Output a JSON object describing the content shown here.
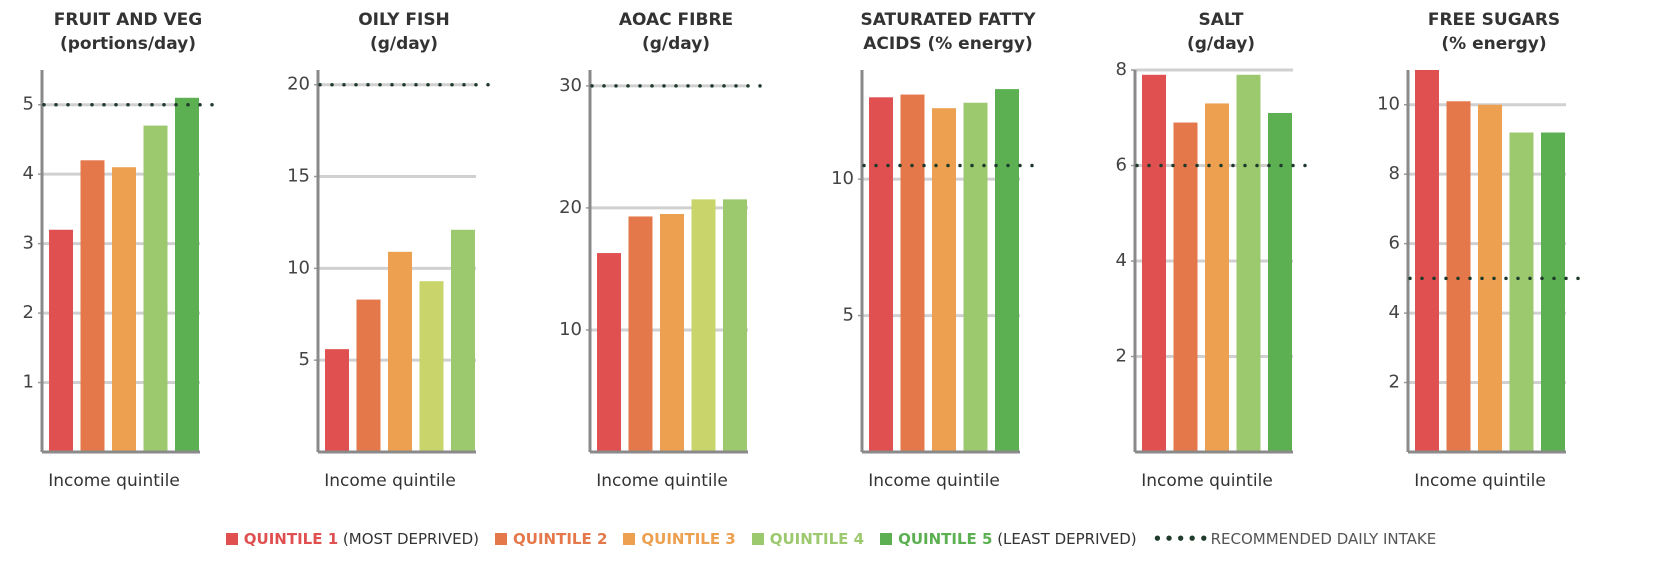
{
  "chart_data": [
    {
      "type": "bar",
      "title": "FRUIT AND VEG",
      "subtitle": "(portions/day)",
      "x_label": "Income quintile",
      "values": [
        3.2,
        4.2,
        4.1,
        4.7,
        5.1
      ],
      "colors": [
        "#e05050",
        "#e5784a",
        "#eca050",
        "#9cc86e",
        "#5cb052"
      ],
      "reference": 5,
      "ylim": [
        0,
        5.5
      ],
      "yticks": [
        1,
        2,
        3,
        4,
        5
      ],
      "grid": true
    },
    {
      "type": "bar",
      "title": "OILY FISH",
      "subtitle": "(g/day)",
      "x_label": "Income quintile",
      "values": [
        5.6,
        8.3,
        10.9,
        9.3,
        12.1
      ],
      "colors": [
        "#e05050",
        "#e5784a",
        "#eca050",
        "#c9d46a",
        "#9cc86e"
      ],
      "reference": 20,
      "ylim": [
        0,
        20.8
      ],
      "yticks": [
        5,
        10,
        15,
        20
      ],
      "grid": true
    },
    {
      "type": "bar",
      "title": "AOAC FIBRE",
      "subtitle": "(g/day)",
      "x_label": "Income quintile",
      "values": [
        16.3,
        19.3,
        19.5,
        20.7,
        20.7
      ],
      "colors": [
        "#e05050",
        "#e5784a",
        "#eca050",
        "#c9d46a",
        "#9cc86e"
      ],
      "reference": 30,
      "ylim": [
        0,
        31.3
      ],
      "yticks": [
        10,
        20,
        30
      ],
      "grid": true
    },
    {
      "type": "bar",
      "title": "SATURATED FATTY",
      "subtitle": "ACIDS (% energy)",
      "x_label": "Income quintile",
      "values": [
        13.0,
        13.1,
        12.6,
        12.8,
        13.3
      ],
      "colors": [
        "#e05050",
        "#e5784a",
        "#eca050",
        "#9cc86e",
        "#5cb052"
      ],
      "reference": 10.5,
      "ylim": [
        0,
        14
      ],
      "yticks": [
        5,
        10
      ],
      "grid": true
    },
    {
      "type": "bar",
      "title": "SALT",
      "subtitle": "(g/day)",
      "x_label": "Income quintile",
      "values": [
        7.9,
        6.9,
        7.3,
        7.9,
        7.1
      ],
      "colors": [
        "#e05050",
        "#e5784a",
        "#eca050",
        "#9cc86e",
        "#5cb052"
      ],
      "reference": 6,
      "ylim": [
        0,
        8
      ],
      "yticks": [
        2,
        4,
        6,
        8
      ],
      "grid": true
    },
    {
      "type": "bar",
      "title": "FREE SUGARS",
      "subtitle": "(% energy)",
      "x_label": "Income quintile",
      "values": [
        11.0,
        10.1,
        10.0,
        9.2,
        9.2
      ],
      "colors": [
        "#e05050",
        "#e5784a",
        "#eca050",
        "#9cc86e",
        "#5cb052"
      ],
      "reference": 5,
      "ylim": [
        0,
        11
      ],
      "yticks": [
        2,
        4,
        6,
        8,
        10
      ],
      "grid": true
    }
  ],
  "legend": {
    "items": [
      {
        "name": "QUINTILE 1",
        "note": "(MOST DEPRIVED)",
        "color": "#e05050"
      },
      {
        "name": "QUINTILE 2",
        "color": "#e5784a"
      },
      {
        "name": "QUINTILE 3",
        "color": "#eca050"
      },
      {
        "name": "QUINTILE 4",
        "color": "#9cc86e"
      },
      {
        "name": "QUINTILE 5",
        "note": "(LEAST DEPRIVED)",
        "color": "#5cb052"
      }
    ],
    "reference": "RECOMMENDED DAILY INTAKE"
  }
}
